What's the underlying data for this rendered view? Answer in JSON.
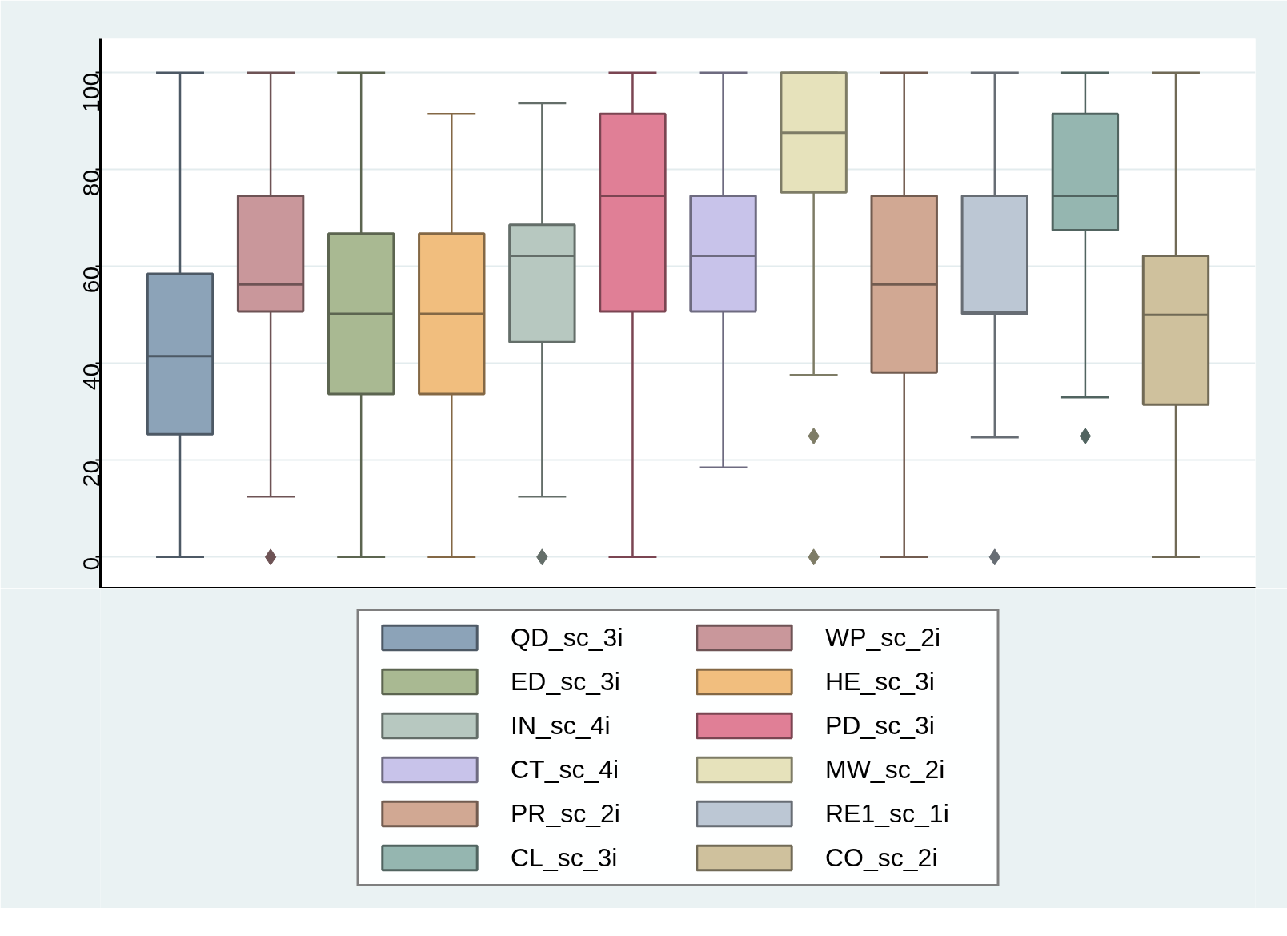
{
  "chart_data": {
    "type": "box",
    "categories": [
      null
    ],
    "ylim": [
      -6.4,
      107
    ],
    "yticks": [
      0,
      20,
      40,
      60,
      80,
      100
    ],
    "grid": "y",
    "tick_labels": "y",
    "legend": "bottom",
    "marker": "diamond",
    "series": [
      {
        "name": "QD_sc_3i",
        "color": "#8ca3b8",
        "boxes": [
          {
            "low": 0,
            "q1": 25.4,
            "median": 41.5,
            "q3": 58.5,
            "high": 100
          }
        ]
      },
      {
        "name": "WP_sc_2i",
        "color": "#c9979b",
        "boxes": [
          {
            "low": 12.5,
            "q1": 50.7,
            "median": 56.3,
            "q3": 74.6,
            "high": 100,
            "outliers": [
              0
            ]
          }
        ]
      },
      {
        "name": "ED_sc_3i",
        "color": "#a9b992",
        "boxes": [
          {
            "low": 0,
            "q1": 33.7,
            "median": 50.2,
            "q3": 66.8,
            "high": 100
          }
        ]
      },
      {
        "name": "HE_sc_3i",
        "color": "#f1be7e",
        "boxes": [
          {
            "low": 0,
            "q1": 33.7,
            "median": 50.2,
            "q3": 66.8,
            "high": 91.5
          }
        ]
      },
      {
        "name": "IN_sc_4i",
        "color": "#b7c8c0",
        "boxes": [
          {
            "low": 12.5,
            "q1": 44.4,
            "median": 62.2,
            "q3": 68.6,
            "high": 93.7,
            "outliers": [
              0
            ]
          }
        ]
      },
      {
        "name": "PD_sc_3i",
        "color": "#e07f96",
        "boxes": [
          {
            "low": 0,
            "q1": 50.7,
            "median": 74.6,
            "q3": 91.5,
            "high": 100
          }
        ]
      },
      {
        "name": "CT_sc_4i",
        "color": "#c8c3ea",
        "boxes": [
          {
            "low": 18.5,
            "q1": 50.7,
            "median": 62.2,
            "q3": 74.6,
            "high": 100
          }
        ]
      },
      {
        "name": "MW_sc_2i",
        "color": "#e6e2bb",
        "boxes": [
          {
            "low": 37.6,
            "q1": 75.3,
            "median": 87.6,
            "q3": 100,
            "high": 100,
            "outliers": [
              25,
              0
            ]
          }
        ]
      },
      {
        "name": "PR_sc_2i",
        "color": "#d1a893",
        "boxes": [
          {
            "low": 0,
            "q1": 38.1,
            "median": 56.3,
            "q3": 74.6,
            "high": 100
          }
        ]
      },
      {
        "name": "RE1_sc_1i",
        "color": "#bcc7d4",
        "boxes": [
          {
            "low": 24.7,
            "q1": 50.2,
            "median": 50.5,
            "q3": 74.6,
            "high": 100,
            "outliers": [
              0
            ]
          }
        ]
      },
      {
        "name": "CL_sc_3i",
        "color": "#95b6b0",
        "boxes": [
          {
            "low": 33,
            "q1": 67.5,
            "median": 74.6,
            "q3": 91.5,
            "high": 100,
            "outliers": [
              25
            ]
          }
        ]
      },
      {
        "name": "CO_sc_2i",
        "color": "#cfc19d",
        "boxes": [
          {
            "low": 0,
            "q1": 31.5,
            "median": 50,
            "q3": 62.2,
            "high": 100
          }
        ]
      }
    ]
  }
}
